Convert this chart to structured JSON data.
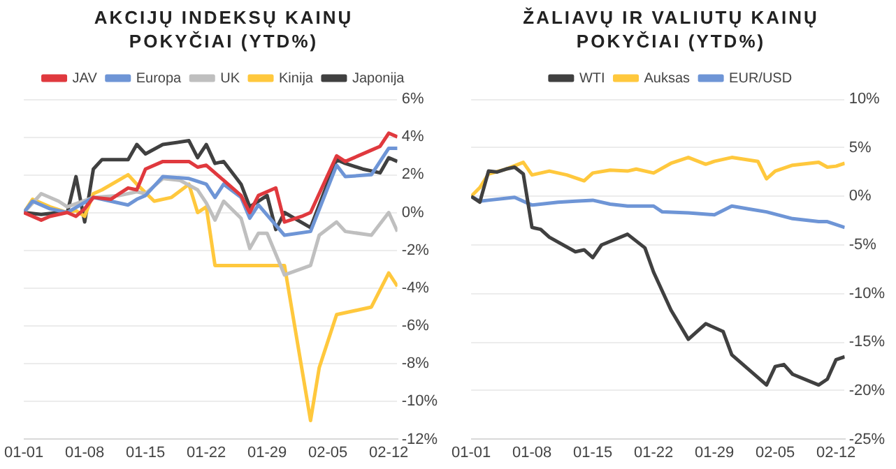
{
  "chart_data": [
    {
      "type": "line",
      "title": "AKCIJŲ INDEKSŲ KAINŲ POKYČIAI (YTD%)",
      "legend": "top",
      "grid": "y",
      "marker": "none",
      "line_style": "solid",
      "xlim": [
        "--01-01",
        "--02-13"
      ],
      "xticks": [
        {
          "value": "--01-01",
          "label": "01-01"
        },
        {
          "value": "--01-08",
          "label": "01-08"
        },
        {
          "value": "--01-15",
          "label": "01-15"
        },
        {
          "value": "--01-22",
          "label": "01-22"
        },
        {
          "value": "--01-29",
          "label": "01-29"
        },
        {
          "value": "--02-05",
          "label": "02-05"
        },
        {
          "value": "--02-12",
          "label": "02-12"
        }
      ],
      "ylim": [
        -12,
        6
      ],
      "yticks": [
        {
          "value": 6,
          "label": "6%"
        },
        {
          "value": 4,
          "label": "4%"
        },
        {
          "value": 2,
          "label": "2%"
        },
        {
          "value": 0,
          "label": "0%"
        },
        {
          "value": -2,
          "label": "-2%"
        },
        {
          "value": -4,
          "label": "-4%"
        },
        {
          "value": -6,
          "label": "-6%"
        },
        {
          "value": -8,
          "label": "-8%"
        },
        {
          "value": -10,
          "label": "-10%"
        },
        {
          "value": -12,
          "label": "-12%"
        }
      ],
      "series": [
        {
          "name": "JAV",
          "color": "#e0393e",
          "x": [
            "--01-01",
            "--01-03",
            "--01-04",
            "--01-06",
            "--01-07",
            "--01-08",
            "--01-09",
            "--01-11",
            "--01-12",
            "--01-13",
            "--01-14",
            "--01-15",
            "--01-17",
            "--01-20",
            "--01-21",
            "--01-22",
            "--01-24",
            "--01-26",
            "--01-27",
            "--01-28",
            "--01-30",
            "--01-31",
            "--02-02",
            "--02-03",
            "--02-06",
            "--02-07",
            "--02-10",
            "--02-11",
            "--02-12",
            "--02-13"
          ],
          "values": [
            0,
            -0.4,
            -0.2,
            0,
            -0.2,
            0.2,
            0.8,
            0.7,
            1.0,
            1.3,
            1.2,
            2.3,
            2.7,
            2.7,
            2.4,
            2.5,
            1.7,
            0.9,
            0,
            0.9,
            1.3,
            -0.5,
            -0.2,
            0,
            3.0,
            2.7,
            3.3,
            3.5,
            4.2,
            4.0
          ]
        },
        {
          "name": "Europa",
          "color": "#6e95d6",
          "x": [
            "--01-01",
            "--01-02",
            "--01-04",
            "--01-06",
            "--01-09",
            "--01-11",
            "--01-13",
            "--01-14",
            "--01-15",
            "--01-17",
            "--01-20",
            "--01-22",
            "--01-23",
            "--01-24",
            "--01-26",
            "--01-27",
            "--01-28",
            "--01-31",
            "--02-03",
            "--02-06",
            "--02-07",
            "--02-10",
            "--02-12",
            "--02-13"
          ],
          "values": [
            0,
            0.6,
            0.2,
            0,
            0.8,
            0.6,
            0.4,
            0.7,
            0.9,
            1.9,
            1.8,
            1.5,
            0.8,
            1.5,
            0.8,
            -0.3,
            0.4,
            -1.2,
            -1.0,
            2.5,
            1.9,
            2.0,
            3.4,
            3.4
          ]
        },
        {
          "name": "UK",
          "color": "#bfbfbf",
          "x": [
            "--01-01",
            "--01-03",
            "--01-05",
            "--01-06",
            "--01-09",
            "--01-12",
            "--01-14",
            "--01-15",
            "--01-17",
            "--01-19",
            "--01-21",
            "--01-22",
            "--01-23",
            "--01-24",
            "--01-26",
            "--01-27",
            "--01-28",
            "--01-29",
            "--01-31",
            "--02-03",
            "--02-04",
            "--02-06",
            "--02-07",
            "--02-10",
            "--02-12",
            "--02-13"
          ],
          "values": [
            0,
            1.0,
            0.6,
            0.3,
            0.8,
            0.9,
            1.1,
            1.0,
            1.8,
            1.7,
            1.2,
            0.5,
            -0.4,
            0.6,
            -0.3,
            -1.9,
            -1.1,
            -1.1,
            -3.3,
            -2.8,
            -1.2,
            -0.5,
            -1.0,
            -1.2,
            0,
            -1.0
          ]
        },
        {
          "name": "Kinija",
          "color": "#ffc83d",
          "x": [
            "--01-01",
            "--01-02",
            "--01-04",
            "--01-06",
            "--01-07",
            "--01-08",
            "--01-09",
            "--01-10",
            "--01-13",
            "--01-14",
            "--01-16",
            "--01-18",
            "--01-20",
            "--01-21",
            "--01-22",
            "--01-23",
            "--01-31",
            "--02-03",
            "--02-04",
            "--02-06",
            "--02-10",
            "--02-12",
            "--02-13"
          ],
          "values": [
            0,
            0.7,
            0.3,
            0,
            0.1,
            -0.2,
            1.0,
            1.2,
            2.0,
            1.5,
            0.6,
            0.8,
            1.5,
            0,
            0.3,
            -2.8,
            -2.8,
            -11.0,
            -8.2,
            -5.4,
            -5.0,
            -3.2,
            -3.9
          ]
        },
        {
          "name": "Japonija",
          "color": "#404040",
          "x": [
            "--01-01",
            "--01-03",
            "--01-05",
            "--01-06",
            "--01-07",
            "--01-08",
            "--01-09",
            "--01-10",
            "--01-13",
            "--01-14",
            "--01-15",
            "--01-17",
            "--01-20",
            "--01-21",
            "--01-22",
            "--01-23",
            "--01-24",
            "--01-26",
            "--01-27",
            "--01-29",
            "--01-30",
            "--01-31",
            "--02-03",
            "--02-06",
            "--02-07",
            "--02-09",
            "--02-11",
            "--02-12",
            "--02-13"
          ],
          "values": [
            0,
            -0.1,
            0,
            0,
            1.9,
            -0.5,
            2.3,
            2.8,
            2.8,
            3.6,
            3.1,
            3.6,
            3.8,
            2.9,
            3.6,
            2.6,
            2.7,
            1.5,
            0.3,
            0.9,
            -0.9,
            0,
            -0.8,
            2.8,
            2.6,
            2.3,
            2.1,
            2.9,
            2.7
          ]
        }
      ]
    },
    {
      "type": "line",
      "title": "ŽALIAVŲ IR VALIUTŲ KAINŲ POKYČIAI (YTD%)",
      "legend": "top",
      "grid": "y",
      "marker": "none",
      "line_style": "solid",
      "xlim": [
        "--01-01",
        "--02-13"
      ],
      "xticks": [
        {
          "value": "--01-01",
          "label": "01-01"
        },
        {
          "value": "--01-08",
          "label": "01-08"
        },
        {
          "value": "--01-15",
          "label": "01-15"
        },
        {
          "value": "--01-22",
          "label": "01-22"
        },
        {
          "value": "--01-29",
          "label": "01-29"
        },
        {
          "value": "--02-05",
          "label": "02-05"
        },
        {
          "value": "--02-12",
          "label": "02-12"
        }
      ],
      "ylim": [
        -25,
        10
      ],
      "yticks": [
        {
          "value": 10,
          "label": "10%"
        },
        {
          "value": 5,
          "label": "5%"
        },
        {
          "value": 0,
          "label": "0%"
        },
        {
          "value": -5,
          "label": "-5%"
        },
        {
          "value": -10,
          "label": "-10%"
        },
        {
          "value": -15,
          "label": "-15%"
        },
        {
          "value": -20,
          "label": "-20%"
        },
        {
          "value": -25,
          "label": "-25%"
        }
      ],
      "series": [
        {
          "name": "WTI",
          "color": "#404040",
          "x": [
            "--01-01",
            "--01-02",
            "--01-03",
            "--01-04",
            "--01-05",
            "--01-06",
            "--01-07",
            "--01-08",
            "--01-09",
            "--01-10",
            "--01-13",
            "--01-14",
            "--01-15",
            "--01-16",
            "--01-19",
            "--01-21",
            "--01-22",
            "--01-24",
            "--01-26",
            "--01-28",
            "--01-30",
            "--01-31",
            "--02-04",
            "--02-05",
            "--02-06",
            "--02-07",
            "--02-10",
            "--02-11",
            "--02-12",
            "--02-13"
          ],
          "values": [
            0,
            -0.6,
            2.6,
            2.5,
            2.8,
            3.0,
            2.3,
            -3.2,
            -3.4,
            -4.2,
            -5.7,
            -5.5,
            -6.3,
            -5.0,
            -3.9,
            -5.3,
            -7.8,
            -11.7,
            -14.7,
            -13.1,
            -13.9,
            -16.3,
            -19.4,
            -17.5,
            -17.3,
            -18.3,
            -19.4,
            -18.8,
            -16.8,
            -16.5
          ]
        },
        {
          "name": "Auksas",
          "color": "#ffc83d",
          "x": [
            "--01-01",
            "--01-02",
            "--01-03",
            "--01-05",
            "--01-07",
            "--01-08",
            "--01-10",
            "--01-12",
            "--01-14",
            "--01-15",
            "--01-17",
            "--01-19",
            "--01-20",
            "--01-22",
            "--01-24",
            "--01-26",
            "--01-28",
            "--01-29",
            "--01-31",
            "--02-03",
            "--02-04",
            "--02-05",
            "--02-07",
            "--02-10",
            "--02-11",
            "--02-12",
            "--02-13"
          ],
          "values": [
            0,
            0.9,
            2.3,
            2.8,
            3.5,
            2.2,
            2.6,
            2.2,
            1.6,
            2.4,
            2.7,
            2.6,
            2.8,
            2.4,
            3.4,
            4.0,
            3.3,
            3.6,
            4.0,
            3.6,
            1.8,
            2.6,
            3.2,
            3.5,
            3.0,
            3.1,
            3.4
          ]
        },
        {
          "name": "EUR/USD",
          "color": "#6e95d6",
          "x": [
            "--01-01",
            "--01-02",
            "--01-03",
            "--01-06",
            "--01-08",
            "--01-11",
            "--01-13",
            "--01-15",
            "--01-17",
            "--01-19",
            "--01-22",
            "--01-23",
            "--01-26",
            "--01-29",
            "--01-31",
            "--02-02",
            "--02-04",
            "--02-07",
            "--02-10",
            "--02-11",
            "--02-13"
          ],
          "values": [
            0,
            -0.5,
            -0.4,
            -0.1,
            -0.9,
            -0.6,
            -0.5,
            -0.4,
            -0.8,
            -1.0,
            -1.0,
            -1.6,
            -1.7,
            -1.9,
            -1.0,
            -1.3,
            -1.6,
            -2.3,
            -2.6,
            -2.6,
            -3.2
          ]
        }
      ]
    }
  ]
}
